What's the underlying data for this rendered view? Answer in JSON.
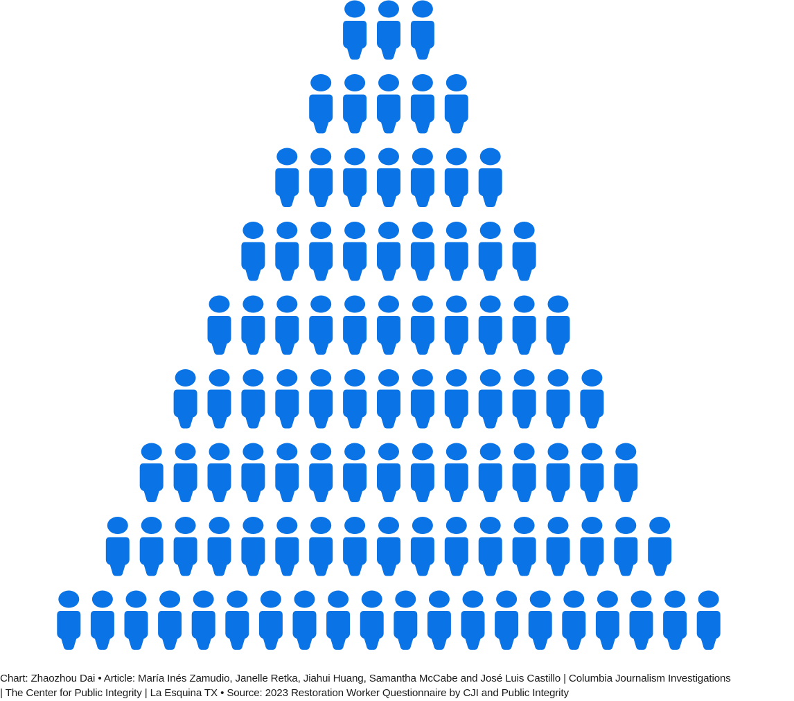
{
  "chart_data": {
    "type": "pictograph",
    "icon": "person-icon",
    "color": "#0a74e6",
    "rows": [
      3,
      5,
      7,
      9,
      11,
      13,
      15,
      17,
      20
    ],
    "total_icons": 100
  },
  "credits": {
    "line1": "Chart: Zhaozhou Dai • Article: María Inés Zamudio, Janelle Retka, Jiahui Huang, Samantha McCabe and José Luis Castillo | Columbia Journalism Investigations",
    "line2": "| The Center for Public Integrity | La Esquina TX • Source: 2023 Restoration Worker Questionnaire by CJI and Public Integrity"
  }
}
